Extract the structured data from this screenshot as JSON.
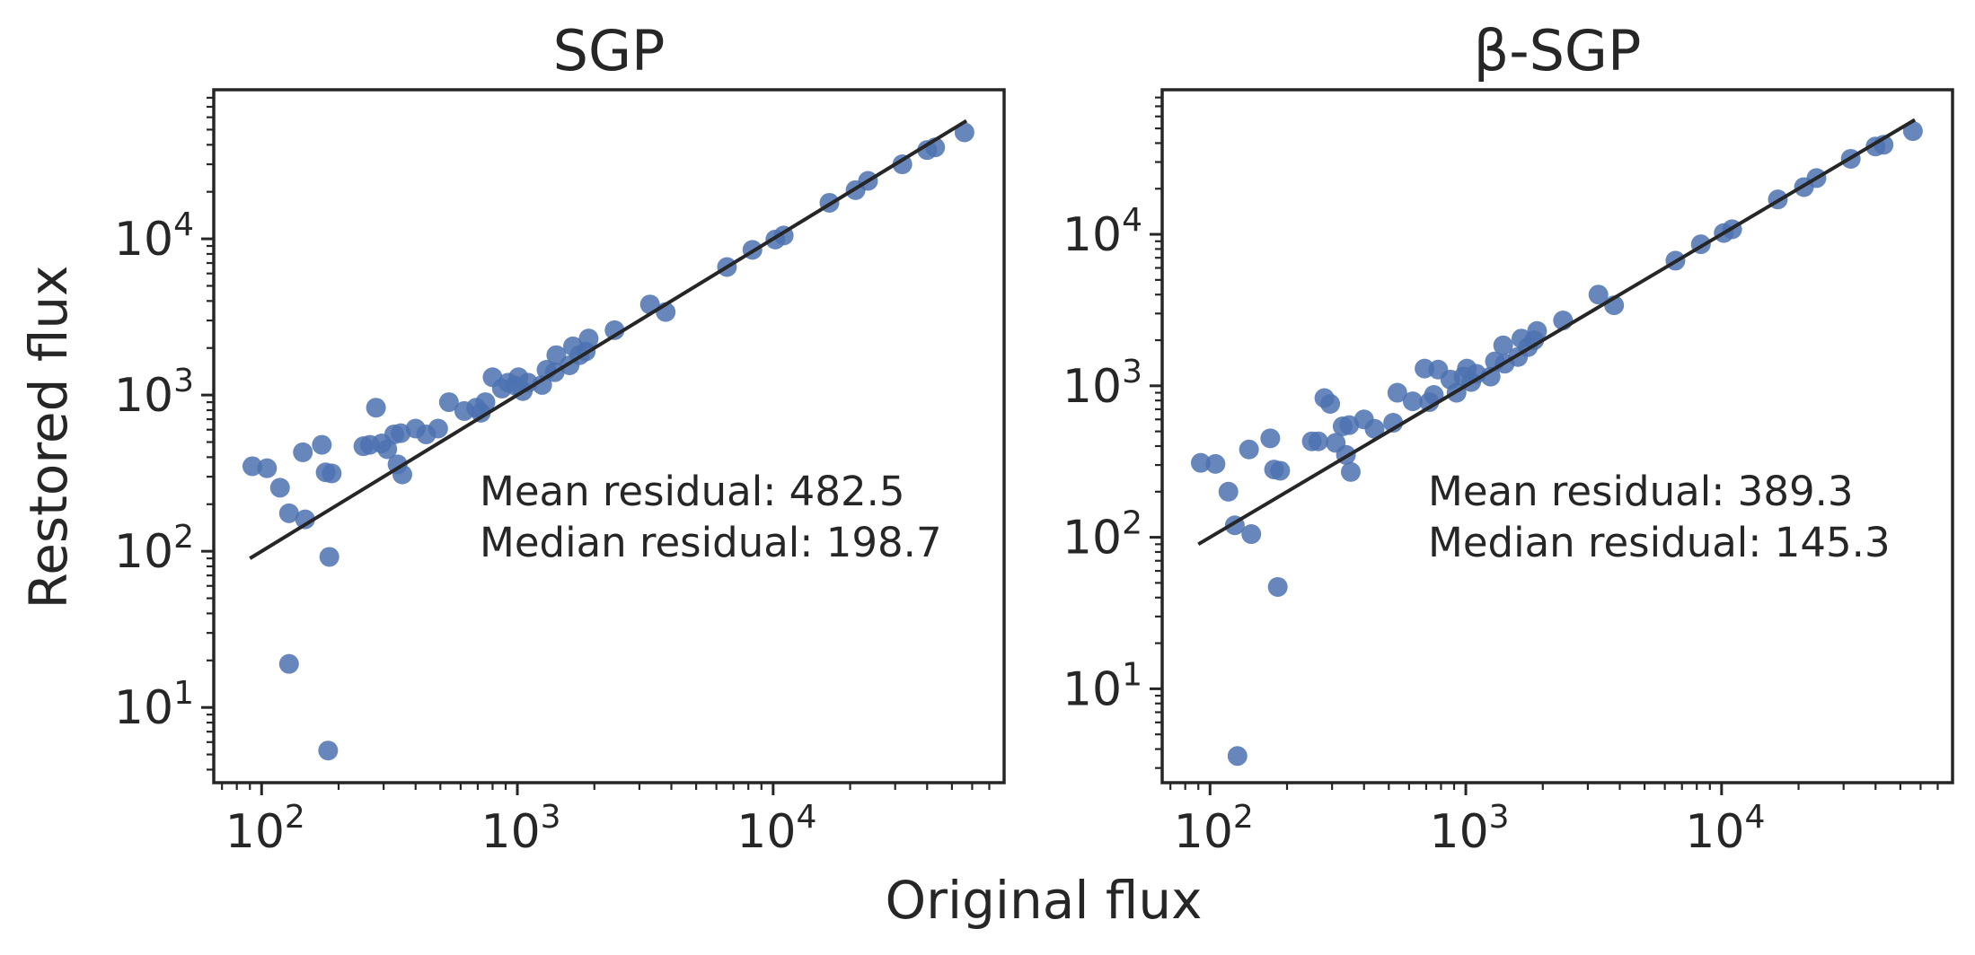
{
  "figure": {
    "xlabel": "Original flux",
    "ylabel": "Restored flux",
    "point_color": "#4c72b0",
    "line_color": "#262626"
  },
  "chart_data": [
    {
      "type": "scatter",
      "title": "SGP",
      "x_scale": "log",
      "y_scale": "log",
      "xlim": [
        65,
        80000
      ],
      "ylim": [
        3.3,
        90000
      ],
      "x_ticks": [
        {
          "value": 100,
          "base": "10",
          "exp": "2"
        },
        {
          "value": 1000,
          "base": "10",
          "exp": "3"
        },
        {
          "value": 10000,
          "base": "10",
          "exp": "4"
        }
      ],
      "y_ticks": [
        {
          "value": 10,
          "base": "10",
          "exp": "1"
        },
        {
          "value": 100,
          "base": "10",
          "exp": "2"
        },
        {
          "value": 1000,
          "base": "10",
          "exp": "3"
        },
        {
          "value": 10000,
          "base": "10",
          "exp": "4"
        }
      ],
      "annotation": {
        "mean": "Mean residual: 482.5",
        "median": "Median residual: 198.7"
      },
      "reference_line": {
        "x": [
          90,
          57000
        ],
        "y": [
          90,
          57000
        ]
      },
      "points": [
        [
          92,
          350
        ],
        [
          105,
          340
        ],
        [
          118,
          255
        ],
        [
          128,
          175
        ],
        [
          128,
          19
        ],
        [
          145,
          430
        ],
        [
          148,
          160
        ],
        [
          172,
          480
        ],
        [
          178,
          320
        ],
        [
          182,
          5.3
        ],
        [
          184,
          92
        ],
        [
          188,
          315
        ],
        [
          250,
          470
        ],
        [
          265,
          480
        ],
        [
          280,
          830
        ],
        [
          295,
          490
        ],
        [
          310,
          450
        ],
        [
          330,
          560
        ],
        [
          340,
          360
        ],
        [
          350,
          570
        ],
        [
          355,
          310
        ],
        [
          400,
          610
        ],
        [
          440,
          560
        ],
        [
          490,
          610
        ],
        [
          540,
          900
        ],
        [
          620,
          790
        ],
        [
          690,
          830
        ],
        [
          720,
          770
        ],
        [
          750,
          900
        ],
        [
          800,
          1300
        ],
        [
          870,
          1100
        ],
        [
          920,
          1200
        ],
        [
          980,
          1150
        ],
        [
          1010,
          1300
        ],
        [
          1050,
          1060
        ],
        [
          1100,
          1200
        ],
        [
          1250,
          1160
        ],
        [
          1300,
          1450
        ],
        [
          1400,
          1400
        ],
        [
          1420,
          1800
        ],
        [
          1600,
          1550
        ],
        [
          1650,
          2050
        ],
        [
          1750,
          1800
        ],
        [
          1850,
          1900
        ],
        [
          1900,
          2300
        ],
        [
          2400,
          2600
        ],
        [
          3300,
          3800
        ],
        [
          3800,
          3400
        ],
        [
          6600,
          6600
        ],
        [
          8300,
          8500
        ],
        [
          10200,
          9900
        ],
        [
          11000,
          10500
        ],
        [
          16600,
          17000
        ],
        [
          21000,
          20500
        ],
        [
          23500,
          23500
        ],
        [
          32000,
          30000
        ],
        [
          40000,
          37000
        ],
        [
          43000,
          38500
        ],
        [
          56000,
          48000
        ]
      ]
    },
    {
      "type": "scatter",
      "title": "β-SGP",
      "x_scale": "log",
      "y_scale": "log",
      "xlim": [
        65,
        80000
      ],
      "ylim": [
        2.4,
        90000
      ],
      "x_ticks": [
        {
          "value": 100,
          "base": "10",
          "exp": "2"
        },
        {
          "value": 1000,
          "base": "10",
          "exp": "3"
        },
        {
          "value": 10000,
          "base": "10",
          "exp": "4"
        }
      ],
      "y_ticks": [
        {
          "value": 10,
          "base": "10",
          "exp": "1"
        },
        {
          "value": 100,
          "base": "10",
          "exp": "2"
        },
        {
          "value": 1000,
          "base": "10",
          "exp": "3"
        },
        {
          "value": 10000,
          "base": "10",
          "exp": "4"
        }
      ],
      "annotation": {
        "mean": "Mean residual: 389.3",
        "median": "Median residual: 145.3"
      },
      "reference_line": {
        "x": [
          90,
          57000
        ],
        "y": [
          90,
          57000
        ]
      },
      "points": [
        [
          92,
          310
        ],
        [
          105,
          305
        ],
        [
          118,
          200
        ],
        [
          125,
          120
        ],
        [
          128,
          3.6
        ],
        [
          142,
          380
        ],
        [
          145,
          105
        ],
        [
          172,
          450
        ],
        [
          178,
          280
        ],
        [
          184,
          47
        ],
        [
          188,
          275
        ],
        [
          250,
          430
        ],
        [
          265,
          430
        ],
        [
          280,
          830
        ],
        [
          295,
          760
        ],
        [
          310,
          420
        ],
        [
          330,
          540
        ],
        [
          340,
          350
        ],
        [
          350,
          550
        ],
        [
          355,
          270
        ],
        [
          400,
          600
        ],
        [
          440,
          520
        ],
        [
          520,
          570
        ],
        [
          540,
          900
        ],
        [
          620,
          790
        ],
        [
          690,
          1300
        ],
        [
          720,
          780
        ],
        [
          750,
          870
        ],
        [
          780,
          1280
        ],
        [
          870,
          1100
        ],
        [
          920,
          900
        ],
        [
          980,
          1150
        ],
        [
          1010,
          1300
        ],
        [
          1050,
          1060
        ],
        [
          1100,
          1200
        ],
        [
          1250,
          1150
        ],
        [
          1300,
          1450
        ],
        [
          1400,
          1850
        ],
        [
          1420,
          1400
        ],
        [
          1600,
          1550
        ],
        [
          1650,
          2050
        ],
        [
          1750,
          1800
        ],
        [
          1850,
          2000
        ],
        [
          1900,
          2300
        ],
        [
          2400,
          2700
        ],
        [
          3300,
          4000
        ],
        [
          3800,
          3400
        ],
        [
          6600,
          6700
        ],
        [
          8300,
          8600
        ],
        [
          10200,
          10200
        ],
        [
          11000,
          10800
        ],
        [
          16600,
          17000
        ],
        [
          21000,
          20500
        ],
        [
          23500,
          23500
        ],
        [
          32000,
          31500
        ],
        [
          40000,
          38000
        ],
        [
          43000,
          39000
        ],
        [
          56000,
          48000
        ]
      ]
    }
  ]
}
